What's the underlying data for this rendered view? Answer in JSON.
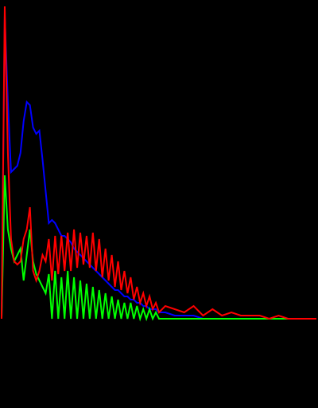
{
  "chart_data": {
    "type": "line",
    "title": "",
    "xlabel": "",
    "ylabel": "",
    "grid": false,
    "legend": "none",
    "xlim": [
      0,
      100
    ],
    "ylim": [
      0,
      100
    ],
    "background_color": "#000000",
    "x": [
      0,
      1,
      2,
      3,
      4,
      5,
      6,
      7,
      8,
      9,
      10,
      11,
      12,
      13,
      14,
      15,
      16,
      17,
      18,
      19,
      20,
      21,
      22,
      23,
      24,
      25,
      26,
      27,
      28,
      29,
      30,
      31,
      32,
      33,
      34,
      35,
      36,
      37,
      38,
      39,
      40,
      41,
      42,
      43,
      44,
      45,
      46,
      47,
      48,
      49,
      50,
      52,
      55,
      58,
      61,
      64,
      67,
      70,
      73,
      76,
      79,
      82,
      85,
      88,
      91,
      94,
      97,
      100
    ],
    "series": [
      {
        "color": "#0000ff",
        "values": [
          0,
          95,
          68,
          46,
          47,
          48,
          52,
          62,
          68,
          67,
          60,
          58,
          59,
          50,
          40,
          30,
          31,
          30,
          28,
          26,
          26,
          25,
          24,
          22,
          21,
          20,
          19,
          18,
          17,
          16,
          15,
          14,
          13,
          12,
          11,
          10,
          9,
          9,
          8,
          7,
          7,
          6,
          6,
          5,
          5,
          4,
          4,
          3,
          3,
          3,
          2,
          2,
          1,
          1,
          1,
          0,
          0,
          0,
          0,
          0,
          0,
          0,
          0,
          0,
          0,
          0,
          0,
          0
        ]
      },
      {
        "color": "#00ff00",
        "values": [
          0,
          45,
          28,
          22,
          18,
          20,
          22,
          12,
          20,
          28,
          18,
          14,
          12,
          10,
          8,
          14,
          0,
          15,
          0,
          13,
          0,
          15,
          0,
          13,
          0,
          12,
          0,
          11,
          0,
          10,
          0,
          9,
          0,
          8,
          0,
          7,
          0,
          6,
          0,
          5,
          0,
          5,
          0,
          4,
          0,
          3,
          0,
          3,
          0,
          2,
          0,
          0,
          0,
          0,
          0,
          0,
          0,
          0,
          0,
          0,
          0,
          0,
          0,
          0,
          0,
          0,
          0,
          0
        ]
      },
      {
        "color": "#ff0000",
        "values": [
          0,
          98,
          52,
          25,
          18,
          17,
          18,
          25,
          28,
          35,
          15,
          12,
          15,
          20,
          18,
          25,
          12,
          26,
          14,
          26,
          15,
          27,
          15,
          28,
          16,
          27,
          17,
          26,
          16,
          27,
          15,
          25,
          13,
          22,
          12,
          20,
          10,
          18,
          9,
          15,
          8,
          13,
          6,
          10,
          5,
          8,
          4,
          7,
          3,
          5,
          2,
          4,
          3,
          2,
          4,
          1,
          3,
          1,
          2,
          1,
          1,
          1,
          0,
          1,
          0,
          0,
          0,
          0
        ]
      }
    ]
  }
}
